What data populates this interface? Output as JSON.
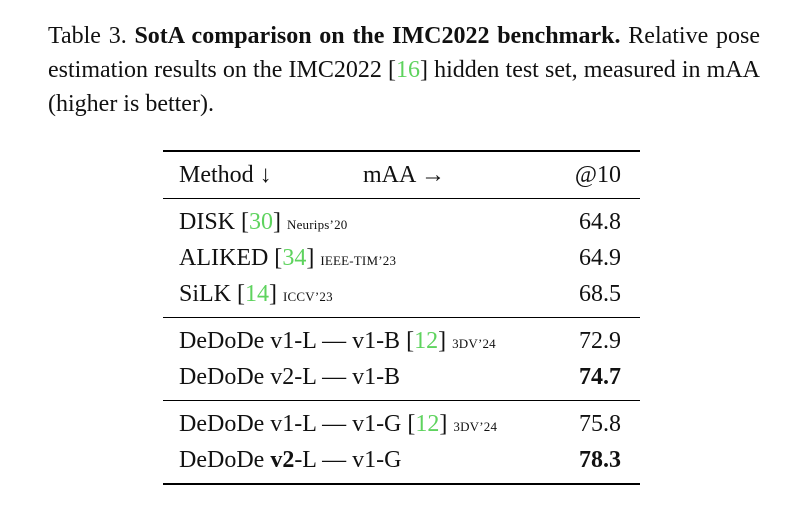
{
  "caption": {
    "label": "Table 3.",
    "title": "SotA comparison on the IMC2022 benchmark.",
    "text_before_cite": "Relative pose estimation results on the IMC2022 [",
    "cite": "16",
    "text_after_cite": "] hidden test set, measured in mAA (higher is better)."
  },
  "table": {
    "headers": {
      "method": "Method ↓",
      "metric": "mAA →",
      "value": "@10"
    },
    "groups": [
      [
        {
          "method": "DISK [",
          "cite": "30",
          "close": "]",
          "venue": "Neurips’20",
          "value": "64.8"
        },
        {
          "method": "ALIKED [",
          "cite": "34",
          "close": "]",
          "venue": "IEEE-TIM’23",
          "value": "64.9"
        },
        {
          "method": "SiLK [",
          "cite": "14",
          "close": "]",
          "venue": "ICCV’23",
          "value": "68.5"
        }
      ],
      [
        {
          "method": "DeDoDe v1-L — v1-B [",
          "cite": "12",
          "close": "]",
          "venue": "3DV’24",
          "value": "72.9"
        },
        {
          "method": "DeDoDe v2-L — v1-B",
          "value": "74.7"
        }
      ],
      [
        {
          "method": "DeDoDe v1-L — v1-G [",
          "cite": "12",
          "close": "]",
          "venue": "3DV’24",
          "value": "75.8"
        },
        {
          "method_pre": "DeDoDe ",
          "method_bold": "v2",
          "method_post": "-L — v1-G",
          "value": "78.3"
        }
      ]
    ]
  }
}
